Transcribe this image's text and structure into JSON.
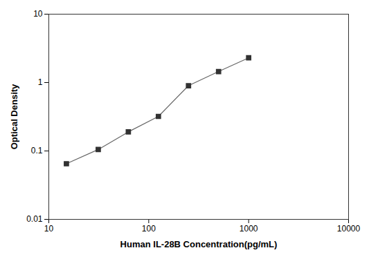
{
  "chart_data": {
    "type": "line",
    "xlabel": "Human IL-28B Concentration(pg/mL)",
    "ylabel": "Optical Density",
    "x": [
      15,
      31.25,
      62.5,
      125,
      250,
      500,
      1000
    ],
    "values": [
      0.065,
      0.105,
      0.19,
      0.32,
      0.9,
      1.45,
      2.3
    ],
    "xlim": [
      10,
      10000
    ],
    "ylim": [
      0.01,
      10
    ],
    "xticks": [
      10,
      100,
      1000,
      10000
    ],
    "yticks": [
      0.01,
      0.1,
      1,
      10
    ],
    "log": true,
    "grid": false,
    "color": "#666666",
    "marker": "square"
  }
}
